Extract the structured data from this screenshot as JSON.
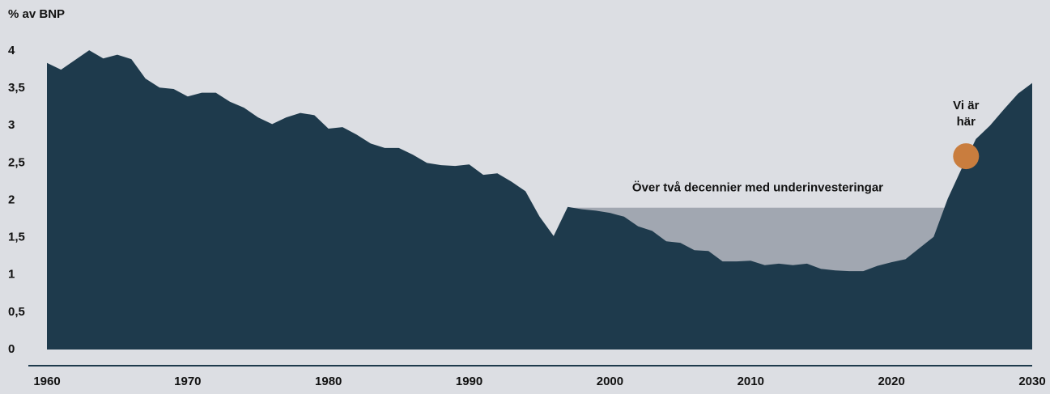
{
  "chart_data": {
    "type": "area",
    "ylabel": "% av BNP",
    "x": [
      1960,
      1961,
      1962,
      1963,
      1964,
      1965,
      1966,
      1967,
      1968,
      1969,
      1970,
      1971,
      1972,
      1973,
      1974,
      1975,
      1976,
      1977,
      1978,
      1979,
      1980,
      1981,
      1982,
      1983,
      1984,
      1985,
      1986,
      1987,
      1988,
      1989,
      1990,
      1991,
      1992,
      1993,
      1994,
      1995,
      1996,
      1997,
      1998,
      1999,
      2000,
      2001,
      2002,
      2003,
      2004,
      2005,
      2006,
      2007,
      2008,
      2009,
      2010,
      2011,
      2012,
      2013,
      2014,
      2015,
      2016,
      2017,
      2018,
      2019,
      2020,
      2021,
      2022,
      2023,
      2024,
      2025,
      2026,
      2027,
      2028,
      2029,
      2030
    ],
    "series": [
      {
        "color": "#1e3a4c",
        "values": [
          3.84,
          3.75,
          3.88,
          4.01,
          3.9,
          3.95,
          3.89,
          3.63,
          3.51,
          3.49,
          3.39,
          3.44,
          3.44,
          3.32,
          3.24,
          3.11,
          3.02,
          3.11,
          3.17,
          3.14,
          2.96,
          2.98,
          2.88,
          2.76,
          2.7,
          2.7,
          2.61,
          2.5,
          2.47,
          2.46,
          2.48,
          2.34,
          2.36,
          2.25,
          2.12,
          1.78,
          1.52,
          1.91,
          1.88,
          1.86,
          1.83,
          1.78,
          1.65,
          1.59,
          1.45,
          1.43,
          1.33,
          1.32,
          1.18,
          1.18,
          1.19,
          1.13,
          1.15,
          1.13,
          1.15,
          1.08,
          1.06,
          1.05,
          1.05,
          1.12,
          1.17,
          1.21,
          1.36,
          1.51,
          2.02,
          2.43,
          2.82,
          3.0,
          3.22,
          3.43,
          3.57
        ]
      }
    ],
    "xlim": [
      1960,
      2030
    ],
    "xticks": [
      1960,
      1970,
      1980,
      1990,
      2000,
      2010,
      2020,
      2030
    ],
    "ylim": [
      0,
      4
    ],
    "yticks": [
      0,
      {
        "value": 0.5,
        "label": "0,5"
      },
      1,
      {
        "value": 1.5,
        "label": "1,5"
      },
      2,
      {
        "value": 2.5,
        "label": "2,5"
      },
      3,
      {
        "value": 3.5,
        "label": "3,5"
      },
      4
    ],
    "gap": {
      "start": 1997,
      "end": 2024,
      "value": 1.9,
      "color": "#a1a7b1",
      "label": "Över två decennier med underinvesteringar"
    },
    "marker": {
      "x": 2025.3,
      "y": 2.59,
      "color": "#c97d3e",
      "label": [
        "Vi är",
        "här"
      ]
    }
  }
}
